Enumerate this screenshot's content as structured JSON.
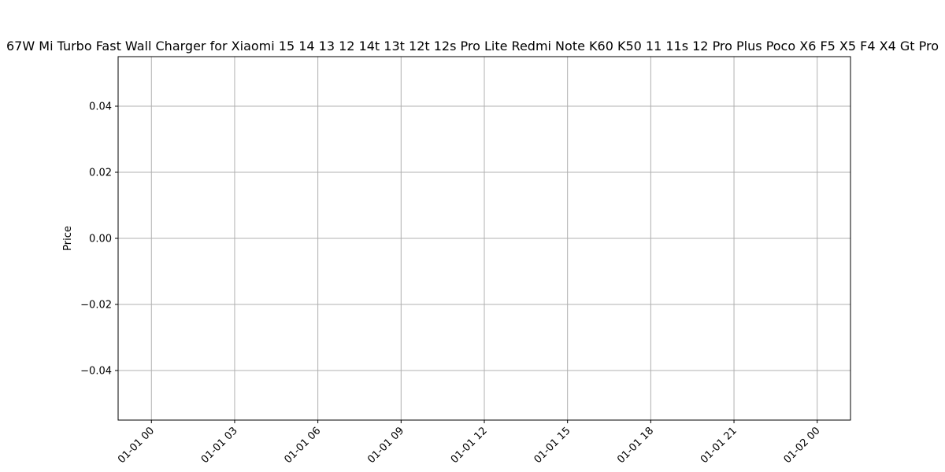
{
  "chart_data": {
    "type": "line",
    "title": "67W Mi Turbo Fast Wall Charger for Xiaomi 15 14 13 12 14t 13t 12t 12s Pro Lite Redmi Note K60 K50 11 11s 12 Pro Plus Poco X6 F5 X5 F4 X4 Gt Pro",
    "xlabel": "",
    "ylabel": "Price",
    "x_ticks": [
      "01-01 00",
      "01-01 03",
      "01-01 06",
      "01-01 09",
      "01-01 12",
      "01-01 15",
      "01-01 18",
      "01-01 21",
      "01-02 00"
    ],
    "y_ticks": [
      "0.04",
      "0.02",
      "0.00",
      "−0.02",
      "−0.04"
    ],
    "ylim": [
      -0.055,
      0.055
    ],
    "y_tick_values": [
      0.04,
      0.02,
      0.0,
      -0.02,
      -0.04
    ],
    "xlim_hours": [
      -1.2,
      25.2
    ],
    "x_tick_hours": [
      0,
      3,
      6,
      9,
      12,
      15,
      18,
      21,
      24
    ],
    "series": [],
    "grid": true,
    "colors": {
      "grid": "#b0b0b0",
      "axes": "#000000"
    }
  }
}
